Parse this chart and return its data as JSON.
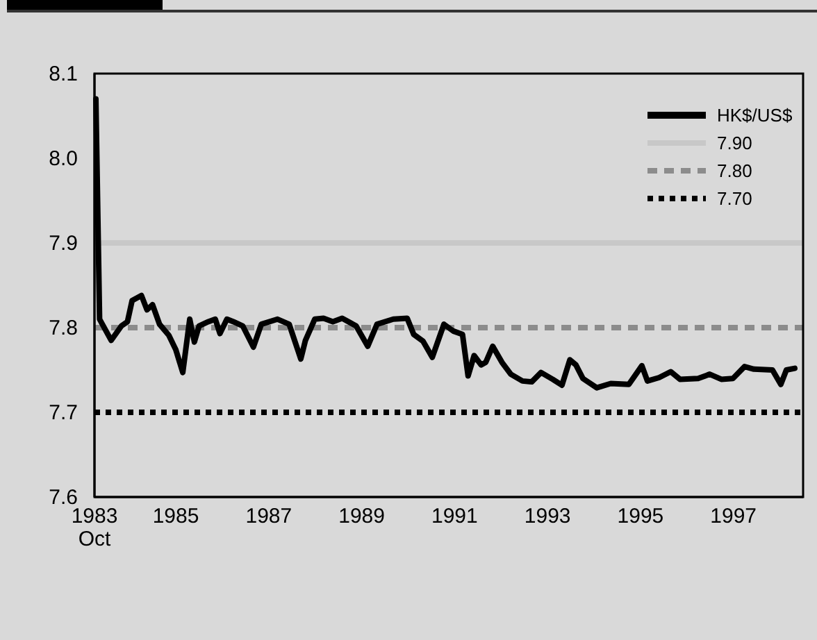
{
  "chart_data": {
    "type": "line",
    "x": [
      1983.78,
      1983.86,
      1984.11,
      1984.33,
      1984.46,
      1984.56,
      1984.76,
      1984.88,
      1985.0,
      1985.15,
      1985.35,
      1985.5,
      1985.65,
      1985.8,
      1985.9,
      1986.0,
      1986.2,
      1986.35,
      1986.45,
      1986.6,
      1986.74,
      1986.94,
      1987.17,
      1987.34,
      1987.69,
      1987.94,
      1988.19,
      1988.29,
      1988.49,
      1988.68,
      1988.88,
      1989.08,
      1989.38,
      1989.63,
      1989.83,
      1990.18,
      1990.48,
      1990.62,
      1990.82,
      1991.02,
      1991.27,
      1991.47,
      1991.67,
      1991.79,
      1991.92,
      1992.07,
      1992.17,
      1992.32,
      1992.52,
      1992.71,
      1992.96,
      1993.16,
      1993.36,
      1993.61,
      1993.81,
      1993.98,
      1994.11,
      1994.26,
      1994.56,
      1994.86,
      1995.25,
      1995.53,
      1995.65,
      1995.9,
      1996.15,
      1996.35,
      1996.74,
      1996.99,
      1997.24,
      1997.49,
      1997.74,
      1997.94,
      1998.34,
      1998.52,
      1998.64,
      1998.82
    ],
    "series": [
      {
        "name": "HK$/US$",
        "color": "#000000",
        "values": [
          8.07,
          7.81,
          7.785,
          7.802,
          7.807,
          7.832,
          7.838,
          7.821,
          7.827,
          7.804,
          7.791,
          7.774,
          7.747,
          7.81,
          7.783,
          7.802,
          7.807,
          7.81,
          7.793,
          7.81,
          7.807,
          7.802,
          7.777,
          7.804,
          7.81,
          7.804,
          7.763,
          7.785,
          7.81,
          7.811,
          7.807,
          7.811,
          7.802,
          7.778,
          7.804,
          7.81,
          7.811,
          7.792,
          7.784,
          7.765,
          7.804,
          7.796,
          7.792,
          7.743,
          7.767,
          7.756,
          7.759,
          7.778,
          7.759,
          7.745,
          7.737,
          7.736,
          7.747,
          7.739,
          7.732,
          7.762,
          7.756,
          7.74,
          7.729,
          7.734,
          7.733,
          7.755,
          7.737,
          7.741,
          7.748,
          7.739,
          7.74,
          7.745,
          7.739,
          7.74,
          7.754,
          7.751,
          7.75,
          7.733,
          7.75,
          7.752
        ]
      }
    ],
    "xlim": [
      1983.75,
      1999
    ],
    "xticks": [
      {
        "value": 1983.75,
        "label": "1983\nOct"
      },
      {
        "value": 1985.5,
        "label": "1985"
      },
      {
        "value": 1987.5,
        "label": "1987"
      },
      {
        "value": 1989.5,
        "label": "1989"
      },
      {
        "value": 1991.5,
        "label": "1991"
      },
      {
        "value": 1993.5,
        "label": "1993"
      },
      {
        "value": 1995.5,
        "label": "1995"
      },
      {
        "value": 1997.5,
        "label": "1997"
      }
    ],
    "ylim": [
      7.6,
      8.1
    ],
    "yticks": [
      {
        "value": 7.6,
        "label": "7.6"
      },
      {
        "value": 7.7,
        "label": "7.7"
      },
      {
        "value": 7.8,
        "label": "7.8"
      },
      {
        "value": 7.9,
        "label": "7.9"
      },
      {
        "value": 8.0,
        "label": "8.0"
      },
      {
        "value": 8.1,
        "label": "8.1"
      }
    ],
    "ref_lines": [
      {
        "axis": "y",
        "value": 7.9,
        "label": "7.90",
        "color": "#c8c8c8",
        "line_style": "solid"
      },
      {
        "axis": "y",
        "value": 7.8,
        "label": "7.80",
        "color": "#8c8c8c",
        "line_style": "dashed"
      },
      {
        "axis": "y",
        "value": 7.7,
        "label": "7.70",
        "color": "#000000",
        "line_style": "dotted"
      }
    ],
    "legend": "top right"
  }
}
